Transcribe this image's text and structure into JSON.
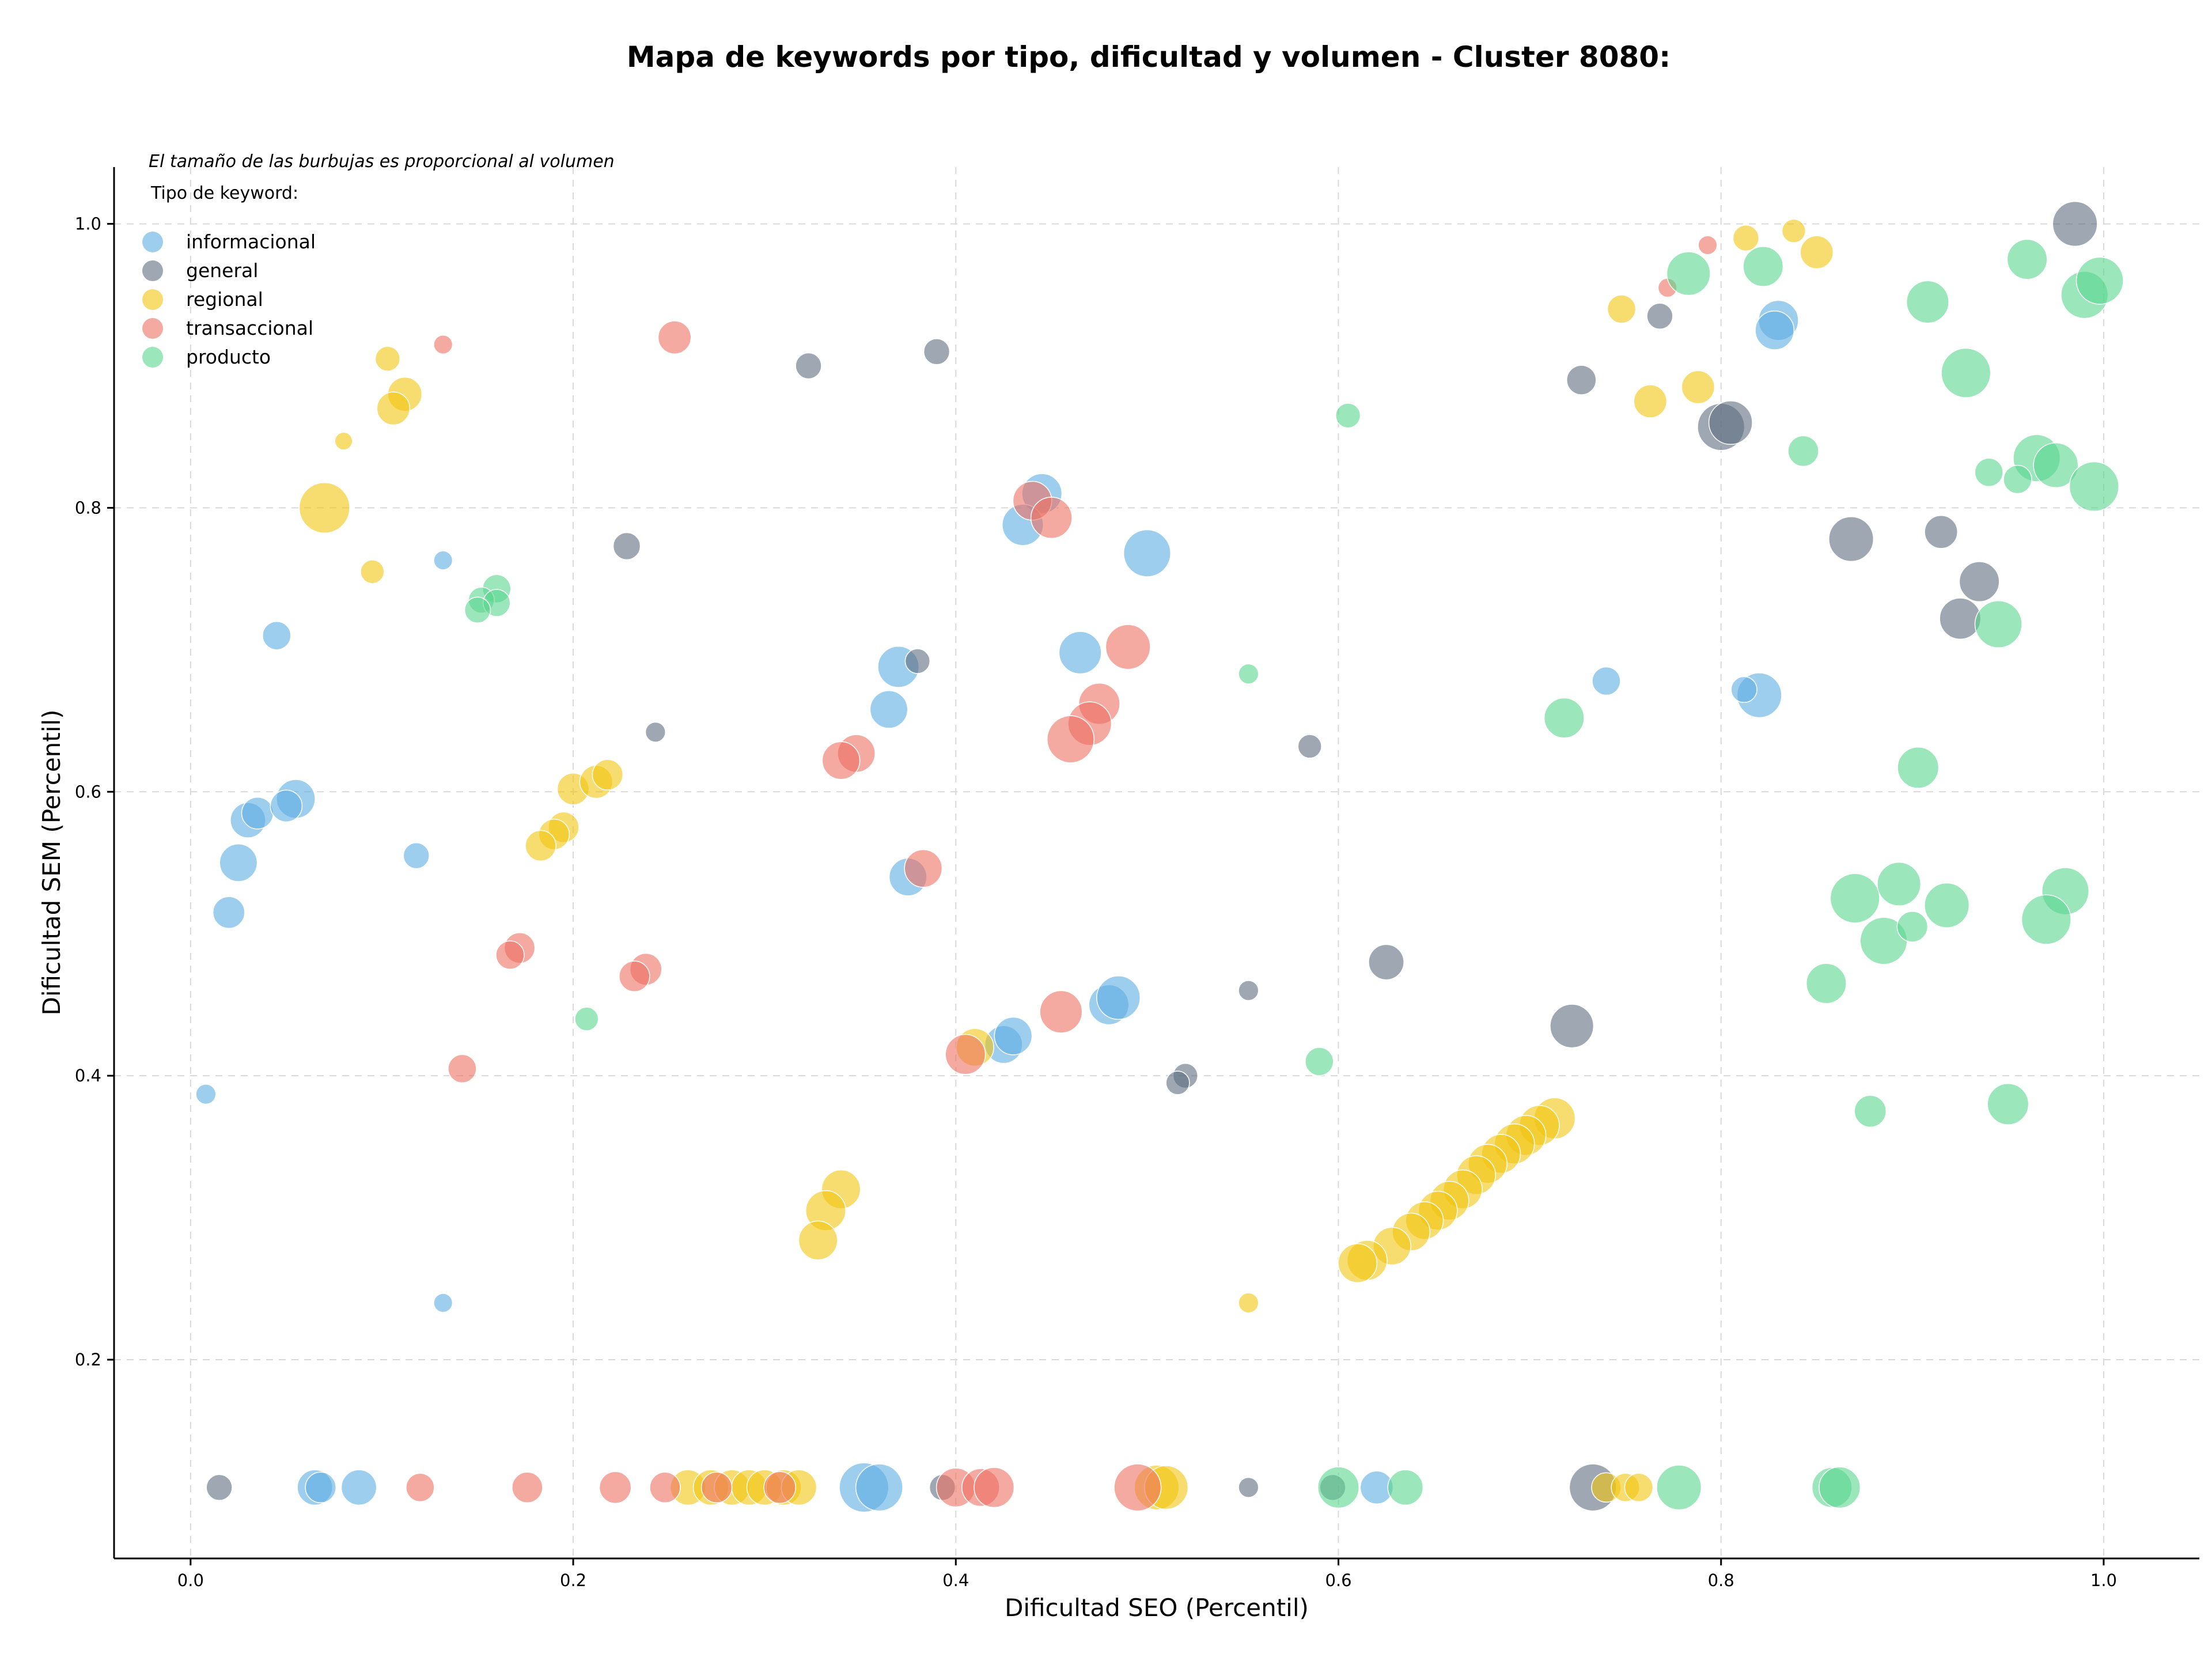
{
  "chart_data": {
    "type": "scatter",
    "title": "Mapa de keywords por tipo, dificultad y volumen - Cluster 8080:",
    "xlabel": "Dificultad SEO (Percentil)",
    "ylabel": "Dificultad SEM (Percentil)",
    "xlim": [
      -0.04,
      1.05
    ],
    "ylim": [
      0.06,
      1.04
    ],
    "xticks": [
      0.0,
      0.2,
      0.4,
      0.6,
      0.8,
      1.0
    ],
    "xtick_labels": [
      "0.0",
      "0.2",
      "0.4",
      "0.6",
      "0.8",
      "1.0"
    ],
    "yticks": [
      0.2,
      0.4,
      0.6,
      0.8,
      1.0
    ],
    "ytick_labels": [
      "0.2",
      "0.4",
      "0.6",
      "0.8",
      "1.0"
    ],
    "grid": true,
    "note": "El tamaño de las burbujas es proporcional al volumen",
    "legend_title": "Tipo de keyword:",
    "legend_position": "top-left",
    "series": [
      {
        "name": "informacional",
        "color": "#5DADE2",
        "points": [
          [
            0.008,
            0.387,
            17
          ],
          [
            0.045,
            0.71,
            24
          ],
          [
            0.055,
            0.595,
            33
          ],
          [
            0.03,
            0.58,
            30
          ],
          [
            0.035,
            0.585,
            27
          ],
          [
            0.05,
            0.59,
            27
          ],
          [
            0.025,
            0.55,
            32
          ],
          [
            0.02,
            0.515,
            27
          ],
          [
            0.118,
            0.555,
            22
          ],
          [
            0.132,
            0.763,
            16
          ],
          [
            0.132,
            0.24,
            16
          ],
          [
            0.37,
            0.688,
            35
          ],
          [
            0.365,
            0.658,
            32
          ],
          [
            0.375,
            0.54,
            32
          ],
          [
            0.445,
            0.81,
            34
          ],
          [
            0.435,
            0.788,
            35
          ],
          [
            0.465,
            0.698,
            36
          ],
          [
            0.5,
            0.768,
            40
          ],
          [
            0.425,
            0.422,
            32
          ],
          [
            0.43,
            0.428,
            32
          ],
          [
            0.48,
            0.45,
            34
          ],
          [
            0.485,
            0.455,
            37
          ],
          [
            0.82,
            0.668,
            38
          ],
          [
            0.812,
            0.672,
            22
          ],
          [
            0.74,
            0.678,
            24
          ],
          [
            0.83,
            0.932,
            34
          ],
          [
            0.828,
            0.925,
            33
          ],
          [
            0.065,
            0.11,
            30
          ],
          [
            0.068,
            0.11,
            26
          ],
          [
            0.088,
            0.11,
            30
          ],
          [
            0.352,
            0.11,
            42
          ],
          [
            0.36,
            0.11,
            40
          ],
          [
            0.62,
            0.11,
            28
          ]
        ]
      },
      {
        "name": "general",
        "color": "#5D6D7E",
        "points": [
          [
            0.985,
            1.0,
            38
          ],
          [
            0.768,
            0.935,
            22
          ],
          [
            0.727,
            0.89,
            25
          ],
          [
            0.8,
            0.857,
            40
          ],
          [
            0.805,
            0.86,
            37
          ],
          [
            0.868,
            0.778,
            38
          ],
          [
            0.915,
            0.783,
            28
          ],
          [
            0.925,
            0.722,
            35
          ],
          [
            0.935,
            0.748,
            34
          ],
          [
            0.323,
            0.9,
            22
          ],
          [
            0.39,
            0.91,
            22
          ],
          [
            0.228,
            0.773,
            23
          ],
          [
            0.38,
            0.692,
            21
          ],
          [
            0.243,
            0.642,
            17
          ],
          [
            0.585,
            0.632,
            20
          ],
          [
            0.625,
            0.48,
            30
          ],
          [
            0.722,
            0.435,
            37
          ],
          [
            0.553,
            0.46,
            17
          ],
          [
            0.52,
            0.4,
            21
          ],
          [
            0.516,
            0.395,
            20
          ],
          [
            0.015,
            0.11,
            22
          ],
          [
            0.393,
            0.11,
            22
          ],
          [
            0.553,
            0.11,
            17
          ],
          [
            0.597,
            0.11,
            22
          ],
          [
            0.733,
            0.11,
            40
          ]
        ]
      },
      {
        "name": "regional",
        "color": "#F1C40F",
        "points": [
          [
            0.813,
            0.99,
            22
          ],
          [
            0.838,
            0.995,
            20
          ],
          [
            0.85,
            0.98,
            28
          ],
          [
            0.748,
            0.94,
            24
          ],
          [
            0.788,
            0.885,
            28
          ],
          [
            0.763,
            0.875,
            28
          ],
          [
            0.103,
            0.905,
            21
          ],
          [
            0.112,
            0.88,
            29
          ],
          [
            0.106,
            0.87,
            28
          ],
          [
            0.08,
            0.847,
            15
          ],
          [
            0.07,
            0.8,
            43
          ],
          [
            0.095,
            0.755,
            20
          ],
          [
            0.2,
            0.602,
            27
          ],
          [
            0.212,
            0.607,
            28
          ],
          [
            0.218,
            0.612,
            26
          ],
          [
            0.195,
            0.575,
            26
          ],
          [
            0.19,
            0.57,
            26
          ],
          [
            0.183,
            0.562,
            26
          ],
          [
            0.34,
            0.32,
            33
          ],
          [
            0.332,
            0.305,
            34
          ],
          [
            0.328,
            0.284,
            33
          ],
          [
            0.41,
            0.42,
            32
          ],
          [
            0.553,
            0.24,
            17
          ],
          [
            0.713,
            0.37,
            35
          ],
          [
            0.705,
            0.365,
            34
          ],
          [
            0.698,
            0.358,
            34
          ],
          [
            0.692,
            0.352,
            34
          ],
          [
            0.685,
            0.345,
            33
          ],
          [
            0.678,
            0.338,
            33
          ],
          [
            0.672,
            0.33,
            33
          ],
          [
            0.665,
            0.32,
            33
          ],
          [
            0.658,
            0.312,
            33
          ],
          [
            0.652,
            0.305,
            33
          ],
          [
            0.645,
            0.298,
            32
          ],
          [
            0.638,
            0.29,
            32
          ],
          [
            0.628,
            0.28,
            32
          ],
          [
            0.615,
            0.27,
            34
          ],
          [
            0.61,
            0.268,
            33
          ],
          [
            0.26,
            0.11,
            30
          ],
          [
            0.272,
            0.11,
            30
          ],
          [
            0.283,
            0.11,
            30
          ],
          [
            0.292,
            0.11,
            30
          ],
          [
            0.3,
            0.11,
            30
          ],
          [
            0.31,
            0.11,
            30
          ],
          [
            0.318,
            0.11,
            30
          ],
          [
            0.505,
            0.11,
            38
          ],
          [
            0.51,
            0.11,
            37
          ],
          [
            0.74,
            0.11,
            25
          ],
          [
            0.75,
            0.11,
            24
          ],
          [
            0.757,
            0.11,
            24
          ]
        ]
      },
      {
        "name": "transaccional",
        "color": "#EC7063",
        "points": [
          [
            0.793,
            0.985,
            16
          ],
          [
            0.772,
            0.955,
            16
          ],
          [
            0.253,
            0.92,
            28
          ],
          [
            0.132,
            0.915,
            16
          ],
          [
            0.44,
            0.805,
            33
          ],
          [
            0.45,
            0.793,
            35
          ],
          [
            0.49,
            0.702,
            38
          ],
          [
            0.475,
            0.662,
            35
          ],
          [
            0.47,
            0.648,
            37
          ],
          [
            0.46,
            0.637,
            40
          ],
          [
            0.348,
            0.627,
            32
          ],
          [
            0.34,
            0.622,
            32
          ],
          [
            0.383,
            0.546,
            32
          ],
          [
            0.172,
            0.49,
            26
          ],
          [
            0.167,
            0.485,
            24
          ],
          [
            0.238,
            0.475,
            27
          ],
          [
            0.232,
            0.47,
            26
          ],
          [
            0.142,
            0.405,
            24
          ],
          [
            0.455,
            0.445,
            36
          ],
          [
            0.405,
            0.415,
            34
          ],
          [
            0.12,
            0.11,
            24
          ],
          [
            0.176,
            0.11,
            26
          ],
          [
            0.222,
            0.11,
            27
          ],
          [
            0.248,
            0.11,
            26
          ],
          [
            0.275,
            0.11,
            26
          ],
          [
            0.308,
            0.11,
            27
          ],
          [
            0.4,
            0.11,
            33
          ],
          [
            0.413,
            0.11,
            32
          ],
          [
            0.42,
            0.11,
            34
          ],
          [
            0.495,
            0.11,
            40
          ]
        ]
      },
      {
        "name": "producto",
        "color": "#58D68D",
        "points": [
          [
            0.783,
            0.965,
            37
          ],
          [
            0.822,
            0.97,
            34
          ],
          [
            0.96,
            0.975,
            34
          ],
          [
            0.908,
            0.945,
            36
          ],
          [
            0.99,
            0.95,
            40
          ],
          [
            0.998,
            0.96,
            40
          ],
          [
            0.928,
            0.895,
            42
          ],
          [
            0.605,
            0.865,
            21
          ],
          [
            0.843,
            0.84,
            26
          ],
          [
            0.965,
            0.835,
            40
          ],
          [
            0.975,
            0.83,
            38
          ],
          [
            0.995,
            0.815,
            42
          ],
          [
            0.94,
            0.825,
            24
          ],
          [
            0.955,
            0.82,
            24
          ],
          [
            0.945,
            0.718,
            40
          ],
          [
            0.16,
            0.743,
            24
          ],
          [
            0.152,
            0.735,
            22
          ],
          [
            0.16,
            0.733,
            23
          ],
          [
            0.15,
            0.728,
            22
          ],
          [
            0.553,
            0.683,
            17
          ],
          [
            0.718,
            0.652,
            34
          ],
          [
            0.903,
            0.617,
            35
          ],
          [
            0.87,
            0.525,
            42
          ],
          [
            0.893,
            0.535,
            37
          ],
          [
            0.918,
            0.52,
            38
          ],
          [
            0.98,
            0.53,
            40
          ],
          [
            0.97,
            0.51,
            42
          ],
          [
            0.885,
            0.495,
            40
          ],
          [
            0.9,
            0.505,
            26
          ],
          [
            0.855,
            0.465,
            34
          ],
          [
            0.207,
            0.44,
            20
          ],
          [
            0.59,
            0.41,
            24
          ],
          [
            0.878,
            0.375,
            27
          ],
          [
            0.95,
            0.38,
            35
          ],
          [
            0.6,
            0.11,
            35
          ],
          [
            0.635,
            0.11,
            30
          ],
          [
            0.778,
            0.11,
            38
          ],
          [
            0.858,
            0.11,
            34
          ],
          [
            0.862,
            0.11,
            35
          ]
        ]
      }
    ]
  }
}
